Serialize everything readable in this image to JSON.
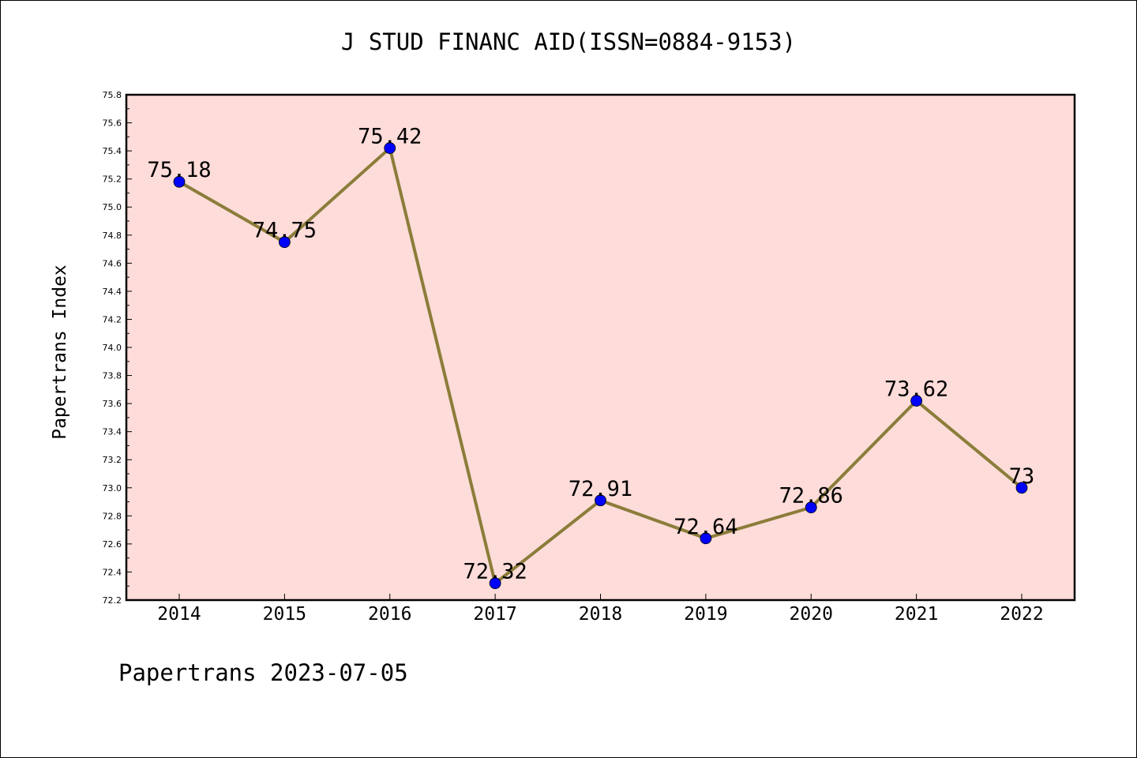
{
  "chart_data": {
    "type": "line",
    "title": "J STUD FINANC AID(ISSN=0884-9153)",
    "ylabel": "Papertrans Index",
    "xlabel": "",
    "categories": [
      "2014",
      "2015",
      "2016",
      "2017",
      "2018",
      "2019",
      "2020",
      "2021",
      "2022"
    ],
    "series": [
      {
        "values": [
          75.18,
          74.75,
          75.42,
          72.32,
          72.91,
          72.64,
          72.86,
          73.62,
          73.0
        ],
        "labels": [
          "75.18",
          "74.75",
          "75.42",
          "72.32",
          "72.91",
          "72.64",
          "72.86",
          "73.62",
          "73"
        ],
        "line_color": "#8B7D3A",
        "marker_color": "#0000FF"
      }
    ],
    "ylim": [
      72.2,
      75.8
    ],
    "yticks": [
      "72.2",
      "72.4",
      "72.6",
      "72.8",
      "73.0",
      "73.2",
      "73.4",
      "73.6",
      "73.8",
      "74.0",
      "74.2",
      "74.4",
      "74.6",
      "74.8",
      "75.0",
      "75.2",
      "75.4",
      "75.6",
      "75.8"
    ],
    "plot_background": "#FDDCD9",
    "grid": false,
    "legend": "none"
  },
  "footer": {
    "note": "Papertrans 2023-07-05"
  }
}
